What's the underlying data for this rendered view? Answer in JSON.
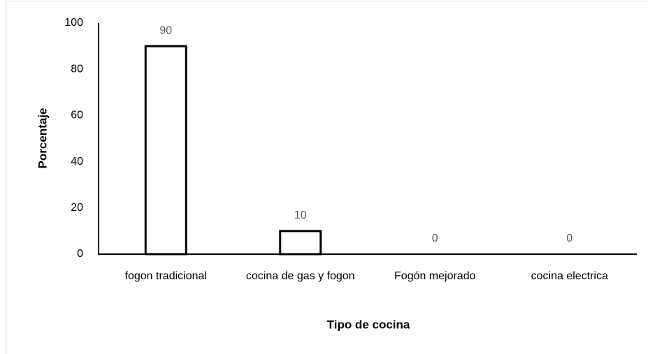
{
  "chart_data": {
    "type": "bar",
    "categories": [
      "fogon tradicional",
      "cocina de gas y fogon",
      "Fogón mejorado",
      "cocina electrica"
    ],
    "values": [
      90,
      10,
      0,
      0
    ],
    "color": "#ffffff",
    "edge_color": "#000000",
    "xlabel": "Tipo de cocina",
    "ylabel": "Porcentaje",
    "ylim": [
      0,
      100
    ],
    "yticks": [
      0,
      20,
      40,
      60,
      80,
      100
    ],
    "grid": false
  }
}
